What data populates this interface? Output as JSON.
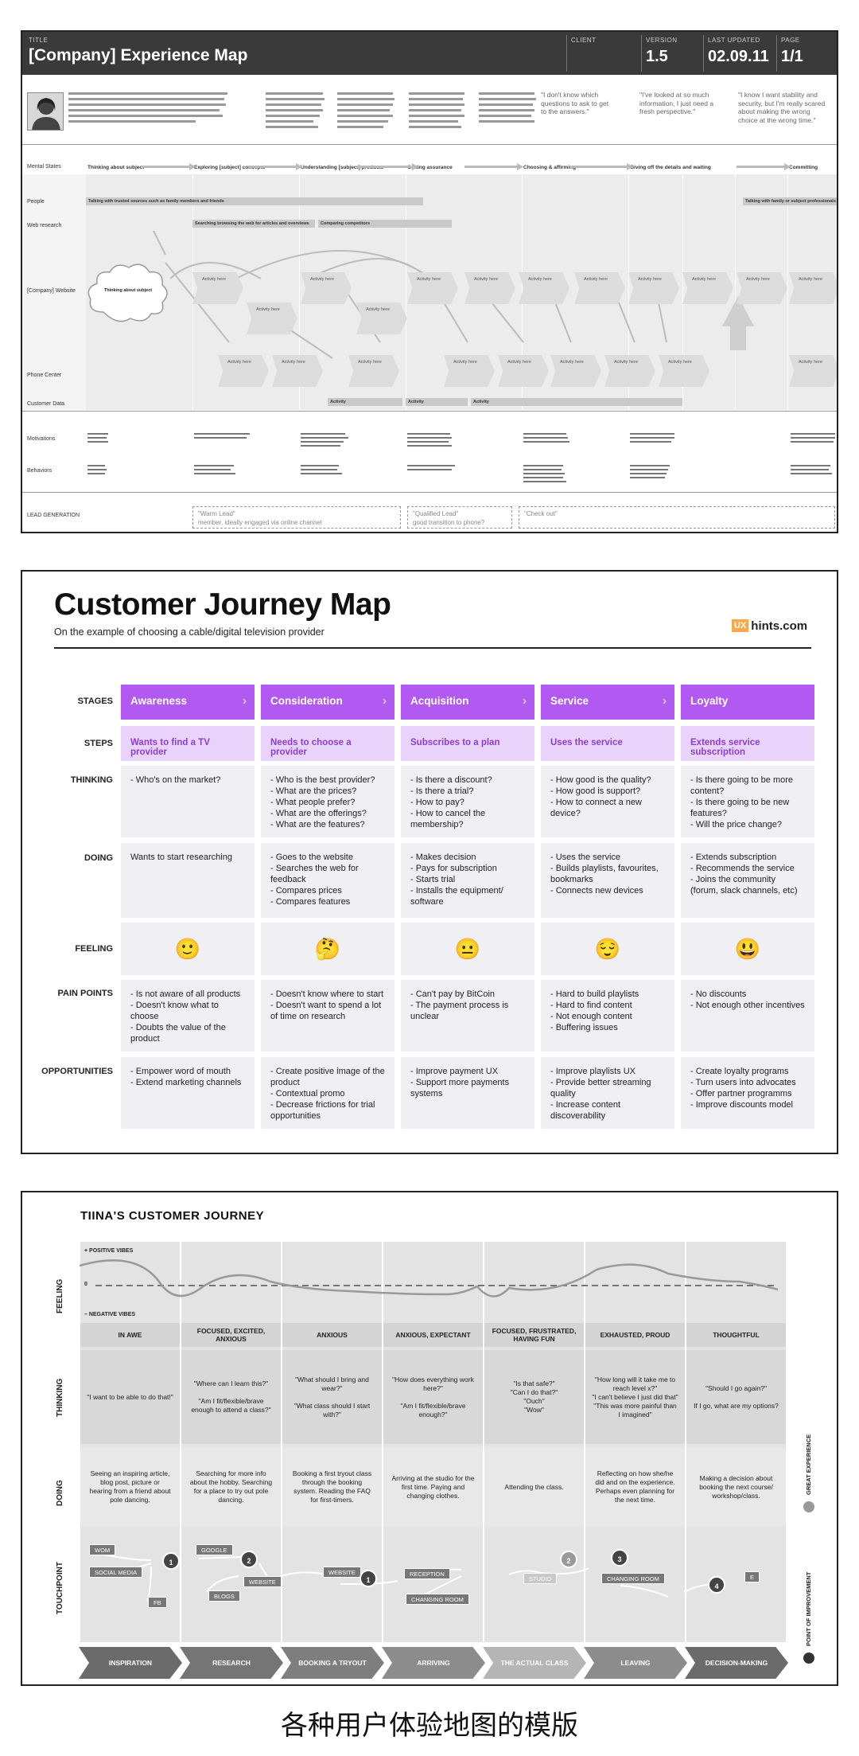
{
  "panel1": {
    "header": {
      "title_caption": "TITLE",
      "title": "[Company] Experience Map",
      "client_caption": "CLIENT",
      "version_caption": "VERSION",
      "version": "1.5",
      "updated_caption": "LAST UPDATED",
      "updated": "02.09.11",
      "page_caption": "PAGE",
      "page": "1/1"
    },
    "persona_quotes": [
      "\"I don't know which questions to ask to get to the answers.\"",
      "\"I've looked at so much information, I just need a fresh perspective.\"",
      "\"I know I want stability and security, but I'm really scared about making the wrong choice at the wrong time.\""
    ],
    "row_labels": [
      "Mental States",
      "People",
      "Web research",
      "[Company] Website",
      "Phone Center",
      "Customer Data",
      "Motivations",
      "Behaviors",
      "LEAD GENERATION"
    ],
    "stages": [
      "Thinking about subject",
      "Exploring [subject] concepts",
      "Understanding [subject] products",
      "Getting assurance",
      "Choosing & affirming",
      "Giving off the details and waiting",
      "Committing"
    ],
    "bars": [
      {
        "label": "Talking with trusted sources such as family members and friends"
      },
      {
        "label": "Searching browsing the web for articles and overviews"
      },
      {
        "label": "Comparing competitors"
      },
      {
        "label": "Talking with family or subject professionals"
      },
      {
        "label": "Activity"
      },
      {
        "label": "Activity"
      },
      {
        "label": "Activity"
      }
    ],
    "cloud_label": "Thinking about subject",
    "activity_label": "Activity here",
    "lead": [
      {
        "quote": "\"Warm Lead\"",
        "note": "member, ideally engaged via online channel"
      },
      {
        "quote": "\"Qualified Lead\"",
        "note": "good transition to phone?"
      },
      {
        "quote": "\"Check out\"",
        "note": ""
      }
    ]
  },
  "panel2": {
    "title": "Customer Journey Map",
    "subtitle": "On the example of choosing a cable/digital television provider",
    "logo_ux": "UX",
    "logo_text": "hints.com",
    "row_labels": {
      "stages": "STAGES",
      "steps": "STEPS",
      "thinking": "THINKING",
      "doing": "DOING",
      "feeling": "FEELING",
      "pain": "PAIN POINTS",
      "opps": "OPPORTUNITIES"
    },
    "columns": [
      {
        "stage": "Awareness",
        "step": "Wants to find a TV provider",
        "thinking": "- Who's on the market?",
        "doing": "Wants to start researching",
        "feeling": "🙂",
        "pain": "- Is not aware of all products\n- Doesn't know what to choose\n- Doubts the value of the product",
        "opps": "- Empower word of mouth\n- Extend marketing channels"
      },
      {
        "stage": "Consideration",
        "step": "Needs to choose a provider",
        "thinking": "- Who is the best provider?\n- What are the prices?\n- What people prefer?\n- What are the offerings?\n- What are the features?",
        "doing": "- Goes to the website\n- Searches the web for feedback\n- Compares prices\n- Compares features",
        "feeling": "🤔",
        "pain": "- Doesn't know where to start\n- Doesn't want to spend a lot of time on research",
        "opps": "- Create positive image of the product\n- Contextual promo\n- Decrease frictions for trial opportunities"
      },
      {
        "stage": "Acquisition",
        "step": "Subscribes to a plan",
        "thinking": "- Is there a discount?\n- Is there a trial?\n- How to pay?\n- How to cancel the membership?",
        "doing": "- Makes decision\n- Pays for subscription\n- Starts trial\n- Installs the equipment/ software",
        "feeling": "😐",
        "pain": "- Can't pay by BitCoin\n- The payment process is unclear",
        "opps": "- Improve payment UX\n- Support more payments systems"
      },
      {
        "stage": "Service",
        "step": "Uses the service",
        "thinking": "- How good is the quality?\n- How good is support?\n- How to connect a new device?",
        "doing": "- Uses the service\n- Builds playlists, favourites, bookmarks\n- Connects new devices",
        "feeling": "😌",
        "pain": "- Hard to build playlists\n- Hard to find content\n- Not enough content\n- Buffering issues",
        "opps": "- Improve playlists UX\n- Provide better streaming quality\n- Increase content discoverability"
      },
      {
        "stage": "Loyalty",
        "step": "Extends  service subscription",
        "thinking": "- Is there going to be more content?\n- Is there going to be new features?\n- Will the price change?",
        "doing": "- Extends subscription\n- Recommends the service\n- Joins the community (forum, slack channels, etc)",
        "feeling": "😃",
        "pain": "- No discounts\n- Not enough other incentives",
        "opps": "- Create loyalty programs\n- Turn users into advocates\n- Offer partner programms\n- Improve discounts model"
      }
    ]
  },
  "panel3": {
    "title": "TIINA'S CUSTOMER JOURNEY",
    "row_labels": {
      "feeling": "FEELING",
      "thinking": "THINKING",
      "doing": "DOING",
      "touchpoint": "TOUCHPOINT"
    },
    "positive": "+ POSITIVE VIBES",
    "zero": "0",
    "negative": "– NEGATIVE VIBES",
    "legend_great": "GREAT EXPERIENCE",
    "legend_improve": "POINT OF IMPROVEMENT",
    "columns": [
      {
        "emotion": "IN AWE",
        "thinking": "\"I want to be able to do that!\"",
        "doing": "Seeing an inspiring article, blog post, picture or hearing from a friend about pole dancing.",
        "phase": "INSPIRATION"
      },
      {
        "emotion": "FOCUSED, EXCITED, ANXIOUS",
        "thinking": "\"Where can I learn this?\"\n\n\"Am I fit/flexible/brave enough to attend a class?\"",
        "doing": "Searching for more info about the hobby. Searching for a place to try out pole dancing.",
        "phase": "RESEARCH"
      },
      {
        "emotion": "ANXIOUS",
        "thinking": "\"What should I bring and wear?\"\n\n\"What class should I start with?\"",
        "doing": "Booking a first tryout class through the booking system. Reading the FAQ for first-timers.",
        "phase": "BOOKING A TRYOUT"
      },
      {
        "emotion": "ANXIOUS, EXPECTANT",
        "thinking": "\"How does everything work here?\"\n\n\"Am I fit/flexible/brave enough?\"",
        "doing": "Arriving at the studio for the first time. Paying and changing clothes.",
        "phase": "ARRIVING"
      },
      {
        "emotion": "FOCUSED, FRUSTRATED, HAVING FUN",
        "thinking": "\"Is that safe?\"\n\"Can I do that?\"\n\"Ouch\"\n\"Wow\"",
        "doing": "Attending the class.",
        "phase": "THE ACTUAL CLASS"
      },
      {
        "emotion": "EXHAUSTED, PROUD",
        "thinking": "\"How long will it take me to reach level x?\"\n\"I can't believe I just did that\"\n\"This was more painful than I imagined\"",
        "doing": "Reflecting on how she/he did and on the experience. Perhaps even planning for the next time.",
        "phase": "LEAVING"
      },
      {
        "emotion": "THOUGHTFUL",
        "thinking": "\"Should I go again?\"\n\nIf I go, what are my options?",
        "doing": "Making a decision about booking the next course/ workshop/class.",
        "phase": "DECISION-MAKING"
      }
    ],
    "touchpoints": {
      "tags": [
        "WOM",
        "SOCIAL MEDIA",
        "FB",
        "GOOGLE",
        "WEBSITE",
        "BLOGS",
        "WEBSITE",
        "RECEPTION",
        "CHANGING ROOM",
        "STUDIO",
        "CHANGING ROOM",
        "E"
      ],
      "circles": [
        "1",
        "2",
        "1",
        "2",
        "3",
        "4"
      ]
    }
  },
  "caption": "各种用户体验地图的模版"
}
